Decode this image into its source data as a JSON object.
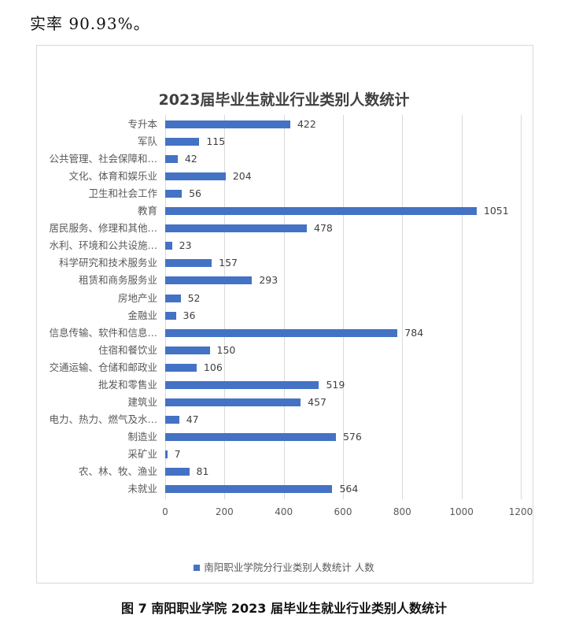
{
  "intro_text": "实率 90.93%。",
  "caption": "图 7  南阳职业学院 2023 届毕业生就业行业类别人数统计",
  "colors": {
    "bar": "#4472c4",
    "grid": "#d9d9d9",
    "text": "#595959",
    "title": "#404040"
  },
  "chart_data": {
    "type": "bar",
    "orientation": "horizontal",
    "title": "2023届毕业生就业行业类别人数统计",
    "xlabel": "",
    "ylabel": "",
    "xlim": [
      0,
      1200
    ],
    "x_ticks": [
      "0",
      "200",
      "400",
      "600",
      "800",
      "1000",
      "1200"
    ],
    "grid": true,
    "legend_position": "bottom",
    "categories": [
      "专升本",
      "军队",
      "公共管理、社会保障和…",
      "文化、体育和娱乐业",
      "卫生和社会工作",
      "教育",
      "居民服务、修理和其他…",
      "水利、环境和公共设施…",
      "科学研究和技术服务业",
      "租赁和商务服务业",
      "房地产业",
      "金融业",
      "信息传输、软件和信息…",
      "住宿和餐饮业",
      "交通运输、仓储和邮政业",
      "批发和零售业",
      "建筑业",
      "电力、热力、燃气及水…",
      "制造业",
      "采矿业",
      "农、林、牧、渔业",
      "未就业"
    ],
    "series": [
      {
        "name": "南阳职业学院分行业类别人数统计 人数",
        "values": [
          422,
          115,
          42,
          204,
          56,
          1051,
          478,
          23,
          157,
          293,
          52,
          36,
          784,
          150,
          106,
          519,
          457,
          47,
          576,
          7,
          81,
          564
        ]
      }
    ]
  }
}
